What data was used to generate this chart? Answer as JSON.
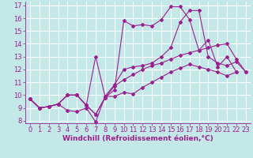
{
  "xlabel": "Windchill (Refroidissement éolien,°C)",
  "bg_color": "#c4e8e8",
  "line_color": "#9b1f8e",
  "xlim": [
    -0.5,
    23.5
  ],
  "ylim": [
    7.8,
    17.3
  ],
  "xticks": [
    0,
    1,
    2,
    3,
    4,
    5,
    6,
    7,
    8,
    9,
    10,
    11,
    12,
    13,
    14,
    15,
    16,
    17,
    18,
    19,
    20,
    21,
    22,
    23
  ],
  "yticks": [
    8,
    9,
    10,
    11,
    12,
    13,
    14,
    15,
    16,
    17
  ],
  "series_x": [
    [
      0,
      1,
      2,
      3,
      4,
      5,
      6,
      7,
      8,
      9,
      10,
      11,
      12,
      13,
      14,
      15,
      16,
      17,
      18,
      19,
      20,
      21,
      22
    ],
    [
      0,
      1,
      2,
      3,
      4,
      5,
      6,
      7,
      8,
      9,
      10,
      11,
      12,
      13,
      14,
      15,
      16,
      17,
      18,
      19,
      20,
      21,
      22,
      23
    ],
    [
      0,
      1,
      2,
      3,
      4,
      5,
      6,
      7,
      8,
      9,
      10,
      11,
      12,
      13,
      14,
      15,
      16,
      17,
      18,
      19,
      20,
      21,
      22,
      23
    ],
    [
      0,
      1,
      2,
      3,
      4,
      5,
      6,
      7,
      8,
      9,
      10,
      11,
      12,
      13,
      14,
      15,
      16,
      17,
      18,
      19,
      20,
      21,
      22
    ]
  ],
  "series_y": [
    [
      9.7,
      9.0,
      9.1,
      9.3,
      8.8,
      8.7,
      9.0,
      7.9,
      9.9,
      9.9,
      10.2,
      10.1,
      10.6,
      11.0,
      11.4,
      11.8,
      12.1,
      12.4,
      12.2,
      12.0,
      11.8,
      11.5,
      11.8
    ],
    [
      9.7,
      9.0,
      9.1,
      9.3,
      10.0,
      10.0,
      9.2,
      8.5,
      9.8,
      10.7,
      11.2,
      11.6,
      12.0,
      12.3,
      12.5,
      12.8,
      13.1,
      13.3,
      13.5,
      13.7,
      13.9,
      14.0,
      12.8,
      11.8
    ],
    [
      9.7,
      9.0,
      9.1,
      9.3,
      10.0,
      10.0,
      9.2,
      13.0,
      9.9,
      10.8,
      12.0,
      12.2,
      12.3,
      12.5,
      13.0,
      13.7,
      15.7,
      16.6,
      16.6,
      13.0,
      12.5,
      12.3,
      12.6,
      11.8
    ],
    [
      9.7,
      9.0,
      9.1,
      9.3,
      10.0,
      10.0,
      9.2,
      8.5,
      9.8,
      10.4,
      15.8,
      15.4,
      15.5,
      15.4,
      15.9,
      16.9,
      16.9,
      15.9,
      13.5,
      14.3,
      12.2,
      13.0,
      11.8
    ]
  ],
  "grid_color": "#ffffff",
  "tick_color": "#9b1f8e",
  "font_size": 6,
  "xlabel_fontsize": 6.5,
  "marker": "D",
  "marker_size": 2,
  "line_width": 0.8
}
